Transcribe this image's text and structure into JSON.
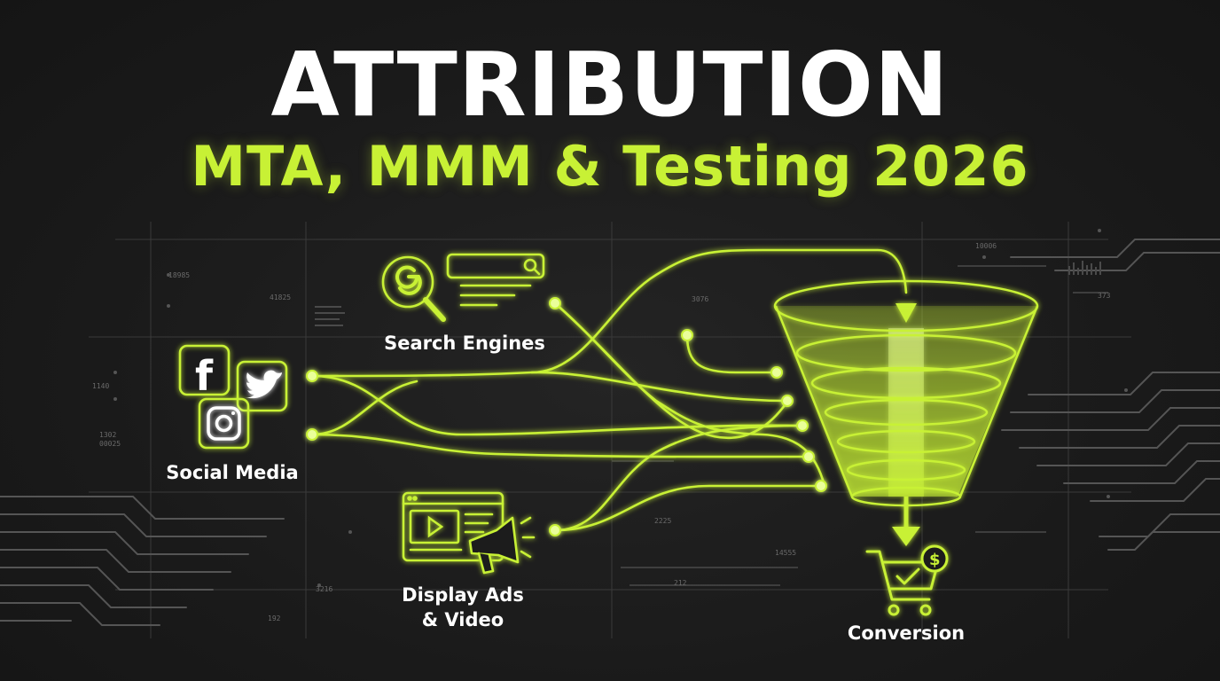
{
  "title": "ATTRIBUTION",
  "subtitle": "MTA, MMM & Testing 2026",
  "colors": {
    "accent": "#c8f135",
    "background": "#1b1b1b",
    "text": "#ffffff",
    "circuit": "#555555"
  },
  "channels": {
    "search": {
      "label": "Search Engines",
      "icon": "google-search-icon"
    },
    "social": {
      "label": "Social Media",
      "icons": [
        "facebook-icon",
        "twitter-icon",
        "instagram-icon"
      ]
    },
    "display": {
      "label_line1": "Display Ads",
      "label_line2": "& Video",
      "icons": [
        "video-player-icon",
        "megaphone-icon"
      ]
    }
  },
  "funnel": {
    "icon": "funnel-icon"
  },
  "conversion": {
    "label": "Conversion",
    "icon": "shopping-cart-dollar-icon"
  },
  "background_numbers": [
    "18985",
    "41825",
    "1140",
    "1302",
    "00025",
    "3216",
    "192",
    "3076",
    "2225",
    "14555",
    "212",
    "10006",
    "373"
  ]
}
